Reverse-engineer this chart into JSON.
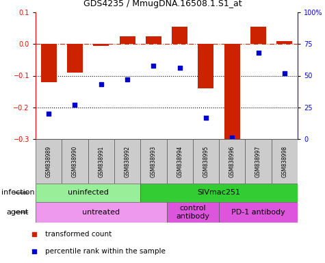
{
  "title": "GDS4235 / MmugDNA.16508.1.S1_at",
  "samples": [
    "GSM838989",
    "GSM838990",
    "GSM838991",
    "GSM838992",
    "GSM838993",
    "GSM838994",
    "GSM838995",
    "GSM838996",
    "GSM838997",
    "GSM838998"
  ],
  "transformed_count": [
    -0.12,
    -0.09,
    -0.005,
    0.025,
    0.025,
    0.055,
    -0.14,
    -0.305,
    0.055,
    0.01
  ],
  "percentile_rank": [
    20,
    27,
    43,
    47,
    58,
    56,
    17,
    1,
    68,
    52
  ],
  "ylim_left": [
    -0.3,
    0.1
  ],
  "ylim_right": [
    0,
    100
  ],
  "yticks_left": [
    -0.3,
    -0.2,
    -0.1,
    0.0,
    0.1
  ],
  "yticks_right": [
    0,
    25,
    50,
    75,
    100
  ],
  "bar_color": "#cc2200",
  "scatter_color": "#0000cc",
  "infection_groups": [
    {
      "label": "uninfected",
      "start": 0,
      "end": 4,
      "color": "#99ee99"
    },
    {
      "label": "SIVmac251",
      "start": 4,
      "end": 10,
      "color": "#33cc33"
    }
  ],
  "agent_groups": [
    {
      "label": "untreated",
      "start": 0,
      "end": 5,
      "color": "#ee99ee"
    },
    {
      "label": "control\nantibody",
      "start": 5,
      "end": 7,
      "color": "#dd55dd"
    },
    {
      "label": "PD-1 antibody",
      "start": 7,
      "end": 10,
      "color": "#dd55dd"
    }
  ],
  "legend_items": [
    {
      "label": "transformed count",
      "color": "#cc2200"
    },
    {
      "label": "percentile rank within the sample",
      "color": "#0000cc"
    }
  ],
  "hline_color": "#cc2200",
  "dotted_line_color": "#000000"
}
